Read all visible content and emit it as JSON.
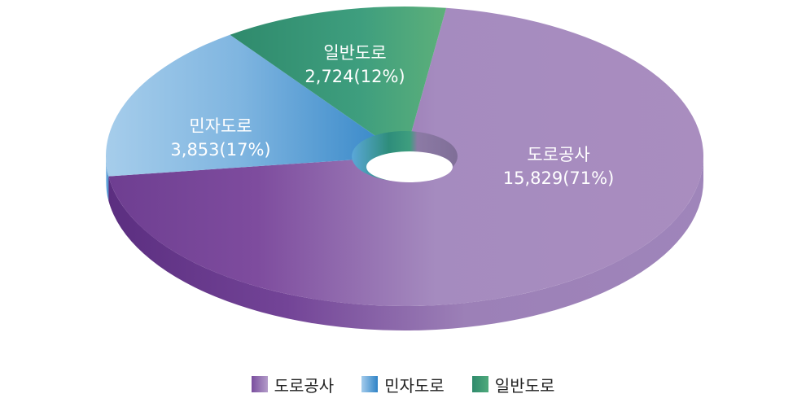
{
  "chart_data": {
    "type": "pie",
    "title": "",
    "categories": [
      "도로공사",
      "민자도로",
      "일반도로"
    ],
    "values": [
      15829,
      3853,
      2724
    ],
    "labels": [
      {
        "name": "도로공사",
        "value_text": "15,829(71%)"
      },
      {
        "name": "민자도로",
        "value_text": "3,853(17%)"
      },
      {
        "name": "일반도로",
        "value_text": "2,724(12%)"
      }
    ],
    "colors": [
      "#A98DBF",
      "#5BA0D6",
      "#3E9E7E"
    ],
    "legend": {
      "placement": "bottom",
      "items": [
        {
          "name": "도로공사",
          "color": "#8B62A8"
        },
        {
          "name": "민자도로",
          "color": "#4A90D0"
        },
        {
          "name": "일반도로",
          "color": "#3E9E7E"
        }
      ]
    }
  }
}
